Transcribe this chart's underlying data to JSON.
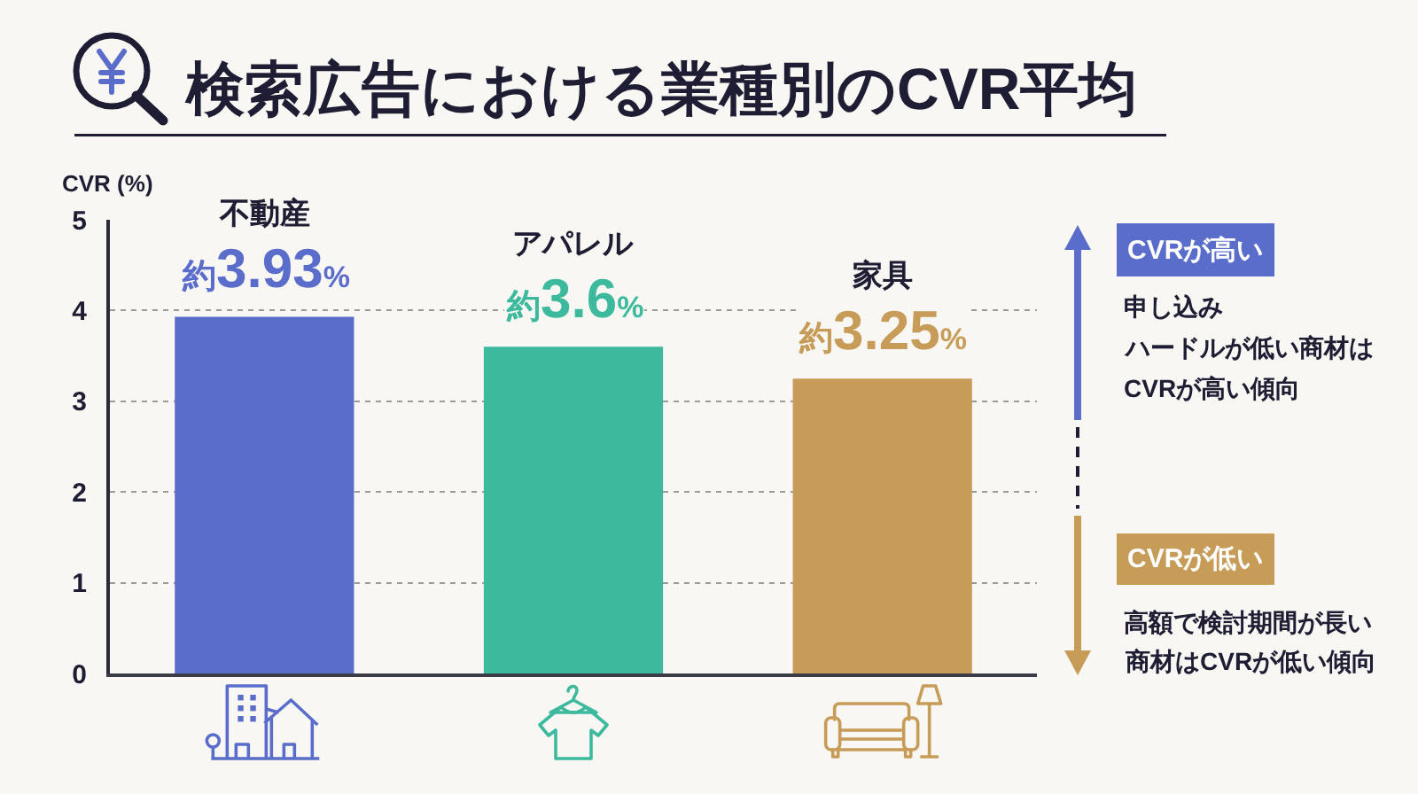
{
  "chart_data": {
    "type": "bar",
    "title": "検索広告における業種別のCVR平均",
    "ylabel": "CVR (%)",
    "categories": [
      "不動産",
      "アパレル",
      "家具"
    ],
    "values": [
      3.93,
      3.6,
      3.25
    ],
    "colors": [
      "#5a6dcb",
      "#3dba9d",
      "#c79c58"
    ],
    "value_labels": [
      "約3.93%",
      "約3.6%",
      "約3.25%"
    ],
    "ylim": [
      0,
      5
    ],
    "yticks": [
      0,
      1,
      2,
      3,
      4,
      5
    ],
    "grid": "y",
    "tick_labels": "y",
    "annotations": [
      "CVRが高い",
      "申し込み",
      "ハードルが低い商材は",
      "CVRが高い傾向",
      "CVRが低い",
      "高額で検討期間が長い",
      "商材はCVRが低い傾向"
    ]
  }
}
